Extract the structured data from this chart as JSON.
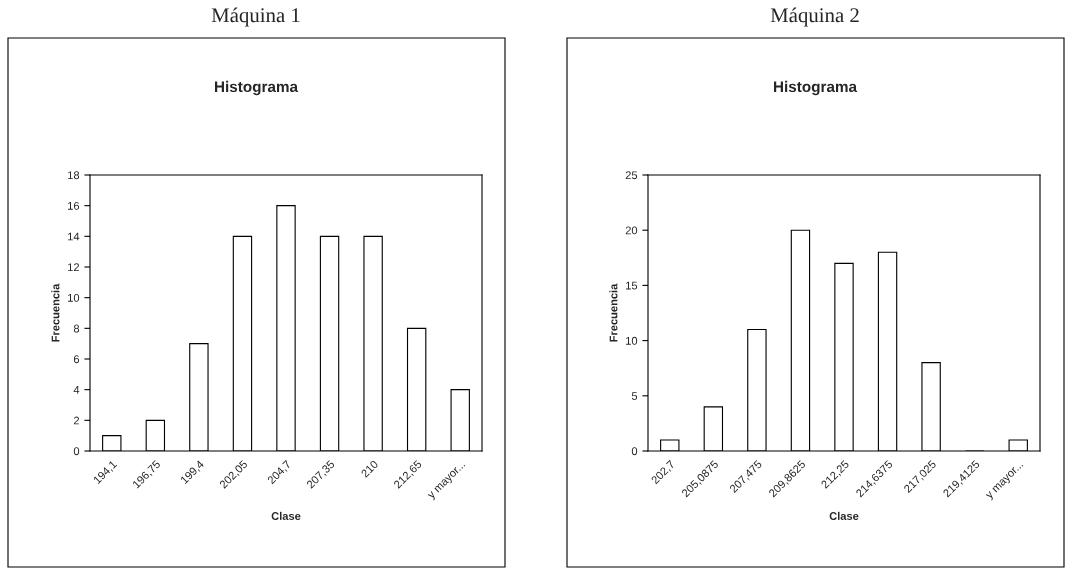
{
  "chart_data": [
    {
      "type": "bar",
      "title": "Máquina 1",
      "subtitle": "Histograma",
      "xlabel": "Clase",
      "ylabel": "Frecuencia",
      "categories": [
        "194,1",
        "196,75",
        "199,4",
        "202,05",
        "204,7",
        "207,35",
        "210",
        "212,65",
        "y mayor..."
      ],
      "values": [
        1,
        2,
        7,
        14,
        16,
        14,
        14,
        8,
        4
      ],
      "color": "#ffffff",
      "ylim": [
        0,
        18
      ],
      "yticks": [
        0,
        2,
        4,
        6,
        8,
        10,
        12,
        14,
        16,
        18
      ],
      "grid": false
    },
    {
      "type": "bar",
      "title": "Máquina 2",
      "subtitle": "Histograma",
      "xlabel": "Clase",
      "ylabel": "Frecuencia",
      "categories": [
        "202,7",
        "205,0875",
        "207,475",
        "209,8625",
        "212,25",
        "214,6375",
        "217,025",
        "219,4125",
        "y mayor..."
      ],
      "values": [
        1,
        4,
        11,
        20,
        17,
        18,
        8,
        0,
        1
      ],
      "color": "#ffffff",
      "ylim": [
        0,
        25
      ],
      "yticks": [
        0,
        5,
        10,
        15,
        20,
        25
      ],
      "grid": false
    }
  ]
}
